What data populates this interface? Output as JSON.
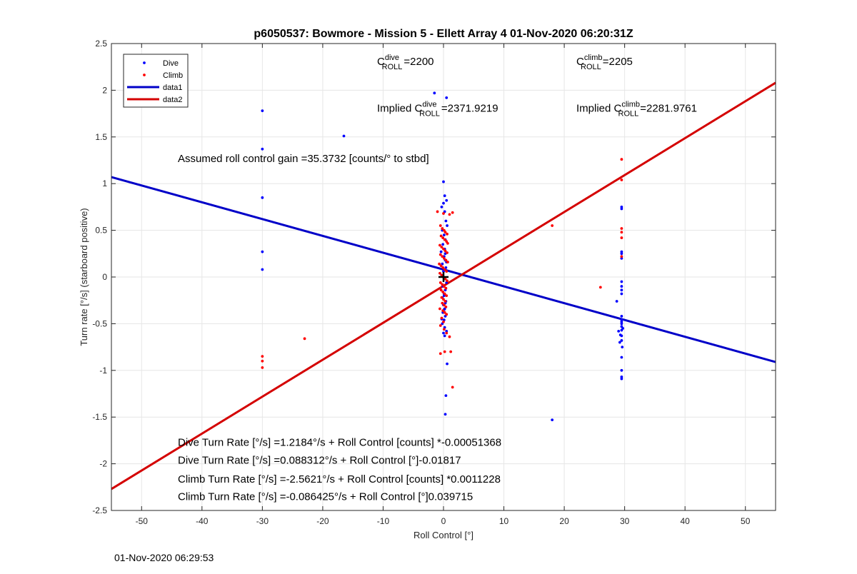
{
  "chart_data": {
    "type": "scatter",
    "title": "p6050537: Bowmore - Mission 5 - Ellett Array 4 01-Nov-2020 06:20:31Z",
    "xlabel": "Roll Control [°]",
    "ylabel": "Turn rate [°/s] (starboard positive)",
    "xlim": [
      -55,
      55
    ],
    "ylim": [
      -2.5,
      2.5
    ],
    "xticks": [
      -50,
      -40,
      -30,
      -20,
      -10,
      0,
      10,
      20,
      30,
      40,
      50
    ],
    "yticks": [
      -2.5,
      -2,
      -1.5,
      -1,
      -0.5,
      0,
      0.5,
      1,
      1.5,
      2,
      2.5
    ],
    "ytick_labels": [
      "-2.5",
      "-2",
      "-1.5",
      "-1",
      "-0.5",
      "0",
      "0.5",
      "1",
      "1.5",
      "2",
      "2.5"
    ],
    "grid": true,
    "legend_position": "top-left",
    "legend": [
      {
        "label": "Dive",
        "kind": "point",
        "color": "#0000ff"
      },
      {
        "label": "Climb",
        "kind": "point",
        "color": "#ff0000"
      },
      {
        "label": "data1",
        "kind": "line",
        "color": "#0000c8"
      },
      {
        "label": "data2",
        "kind": "line",
        "color": "#d40000"
      }
    ],
    "series": [
      {
        "name": "Dive",
        "color": "#0000ff",
        "x": [
          -30,
          -30,
          -30,
          -30,
          -30,
          -16.5,
          -1.5,
          0.5,
          0,
          0.2,
          0.5,
          0,
          -0.3,
          0.2,
          0.4,
          0.6,
          -0.2,
          0.1,
          0.3,
          -0.1,
          0.2,
          -0.4,
          0.1,
          0.3,
          -0.2,
          0.4,
          0.0,
          -0.3,
          0.2,
          0.5,
          -0.1,
          0.3,
          0.1,
          -0.2,
          0.4,
          0.0,
          0.2,
          -0.1,
          0.3,
          0.1,
          -0.2,
          0.2,
          0.5,
          -0.3,
          0.1,
          0.3,
          0.0,
          0.2,
          0.6,
          0.4,
          0.3,
          0.1,
          0.5,
          0.3,
          29.5,
          29.5,
          29.5,
          29.5,
          29.5,
          29.5,
          29.5,
          29.5,
          29.5,
          29.5,
          29.5,
          29.5,
          29.5,
          29.5,
          29.5,
          29.5,
          29.5,
          29.5,
          29.5,
          29.5,
          28.7,
          29.0,
          29.2,
          29.5,
          29.7,
          29.3,
          29.6,
          18
        ],
        "y": [
          1.78,
          1.37,
          0.85,
          0.27,
          0.08,
          1.51,
          1.97,
          1.92,
          1.02,
          0.87,
          0.82,
          0.79,
          0.75,
          0.7,
          0.6,
          0.55,
          0.5,
          0.45,
          0.4,
          0.35,
          0.3,
          0.27,
          0.22,
          0.18,
          0.14,
          0.1,
          0.06,
          0.02,
          -0.02,
          -0.06,
          -0.1,
          -0.14,
          -0.18,
          -0.22,
          -0.26,
          -0.3,
          -0.34,
          -0.38,
          -0.42,
          -0.46,
          -0.5,
          -0.54,
          -0.58,
          -0.45,
          -0.35,
          -0.28,
          -0.6,
          -0.63,
          -0.93,
          -1.27,
          -1.47,
          -0.2,
          0.16,
          0.25,
          0.75,
          0.73,
          0.27,
          0.25,
          0.2,
          -0.05,
          -0.1,
          -0.14,
          -0.18,
          -0.42,
          -0.46,
          -0.5,
          -0.53,
          -0.57,
          -0.63,
          -0.68,
          -0.86,
          -1.0,
          -1.07,
          -1.09,
          -0.26,
          -0.58,
          -0.7,
          -0.48,
          -0.55,
          -0.62,
          -0.75,
          -1.53
        ]
      },
      {
        "name": "Climb",
        "color": "#ff0000",
        "x": [
          -30,
          -30,
          -30,
          -23,
          -1,
          0,
          1,
          1.5,
          -0.5,
          -0.2,
          0.1,
          0.3,
          0.6,
          -0.4,
          -0.1,
          0.2,
          0.5,
          0.7,
          -0.6,
          -0.3,
          0.0,
          0.3,
          0.6,
          -0.5,
          -0.2,
          0.1,
          0.4,
          0.7,
          -0.7,
          -0.4,
          -0.1,
          0.2,
          0.5,
          -0.6,
          -0.3,
          0.0,
          0.3,
          0.6,
          -0.5,
          -0.2,
          0.1,
          0.4,
          -0.4,
          -0.1,
          0.2,
          0.5,
          -0.3,
          0.0,
          0.3,
          -0.2,
          0.1,
          0.4,
          -0.6,
          -0.1,
          0.2,
          0.5,
          -0.3,
          0.0,
          -0.5,
          0.1,
          0.5,
          1.0,
          -0.5,
          0.2,
          1.2,
          1.5,
          18,
          26,
          29.5,
          29.5,
          29.5,
          29.5,
          29.5,
          29.5
        ],
        "y": [
          -0.85,
          -0.9,
          -0.97,
          -0.66,
          0.7,
          0.68,
          0.67,
          0.69,
          0.55,
          0.52,
          0.5,
          0.48,
          0.46,
          0.44,
          0.42,
          0.4,
          0.38,
          0.36,
          0.34,
          0.32,
          0.3,
          0.28,
          0.26,
          0.24,
          0.22,
          0.2,
          0.18,
          0.16,
          0.14,
          0.12,
          0.1,
          0.08,
          0.06,
          0.04,
          0.02,
          0.0,
          -0.02,
          -0.04,
          -0.06,
          -0.08,
          -0.1,
          -0.12,
          -0.14,
          -0.16,
          -0.18,
          -0.2,
          -0.22,
          -0.24,
          -0.26,
          -0.28,
          -0.3,
          -0.32,
          -0.34,
          -0.36,
          -0.38,
          -0.4,
          -0.44,
          -0.48,
          -0.52,
          -0.56,
          -0.6,
          -0.64,
          -0.82,
          -0.8,
          -0.8,
          -1.18,
          0.55,
          -0.11,
          1.26,
          1.04,
          0.52,
          0.48,
          0.42,
          0.22
        ]
      },
      {
        "name": "data1",
        "kind": "line",
        "color": "#0000c8",
        "x": [
          -55,
          55
        ],
        "y": [
          1.07,
          -0.91
        ]
      },
      {
        "name": "data2",
        "kind": "line",
        "color": "#d40000",
        "x": [
          -55,
          55
        ],
        "y": [
          -2.27,
          2.08
        ]
      }
    ],
    "marker": {
      "x": 0,
      "y": 0,
      "symbol": "+"
    },
    "annotations": {
      "c_dive": {
        "base": "C",
        "sup": "dive",
        "sub": "ROLL",
        "rest": "=2200",
        "x": -11,
        "y": 2.27
      },
      "c_climb": {
        "base": "C",
        "sup": "climb",
        "sub": "ROLL",
        "rest": "=2205",
        "x": 22,
        "y": 2.27
      },
      "implied_dive": {
        "prefix": "Implied C",
        "sup": "dive",
        "sub": "ROLL",
        "rest": "=2371.9219",
        "x": -11,
        "y": 1.77
      },
      "implied_climb": {
        "prefix": "Implied C",
        "sup": "climb",
        "sub": "ROLL",
        "rest": "=2281.9761",
        "x": 22,
        "y": 1.77
      },
      "gain": {
        "text": "Assumed roll control gain =35.3732 [counts/° to stbd]",
        "x": -44,
        "y": 1.23
      },
      "eq1": {
        "text": "Dive Turn Rate [°/s] =1.2184°/s + Roll Control [counts] *-0.00051368",
        "x": -44,
        "y": -1.81
      },
      "eq2": {
        "text": "Dive Turn Rate [°/s] =0.088312°/s + Roll Control [°]-0.01817",
        "x": -44,
        "y": -2.0
      },
      "eq3": {
        "text": "Climb Turn Rate [°/s] =-2.5621°/s + Roll Control [counts] *0.0011228",
        "x": -44,
        "y": -2.2
      },
      "eq4": {
        "text": "Climb Turn Rate [°/s] =-0.086425°/s + Roll Control [°]0.039715",
        "x": -44,
        "y": -2.39
      }
    }
  },
  "footer": {
    "timestamp": "01-Nov-2020 06:29:53"
  }
}
